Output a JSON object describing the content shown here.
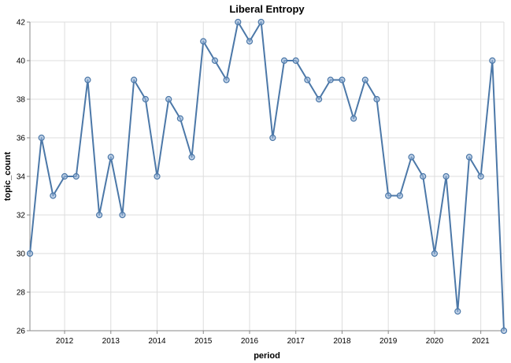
{
  "chart_data": {
    "type": "line",
    "title": "Liberal Entropy",
    "xlabel": "period",
    "ylabel": "topic_count",
    "x_tick_labels": [
      "2012",
      "2013",
      "2014",
      "2015",
      "2016",
      "2017",
      "2018",
      "2019",
      "2020",
      "2021"
    ],
    "ylim": [
      26,
      42
    ],
    "y_ticks": [
      26,
      28,
      30,
      32,
      34,
      36,
      38,
      40,
      42
    ],
    "grid": true,
    "colors": {
      "line": "#4c78a8",
      "point_fill": "#9ab5d8"
    },
    "series": [
      {
        "x": [
          "2011-04",
          "2011-07",
          "2011-10",
          "2012-01",
          "2012-04",
          "2012-07",
          "2012-10",
          "2013-01",
          "2013-04",
          "2013-07",
          "2013-10",
          "2014-01",
          "2014-04",
          "2014-07",
          "2014-10",
          "2015-01",
          "2015-04",
          "2015-07",
          "2015-10",
          "2016-01",
          "2016-04",
          "2016-07",
          "2016-10",
          "2017-01",
          "2017-04",
          "2017-07",
          "2017-10",
          "2018-01",
          "2018-04",
          "2018-07",
          "2018-10",
          "2019-01",
          "2019-04",
          "2019-07",
          "2019-10",
          "2020-01",
          "2020-04",
          "2020-07",
          "2020-10",
          "2021-01",
          "2021-04",
          "2021-07"
        ],
        "values": [
          30,
          36,
          33,
          34,
          34,
          39,
          32,
          35,
          32,
          39,
          38,
          34,
          38,
          37,
          35,
          41,
          40,
          39,
          42,
          41,
          42,
          36,
          40,
          40,
          39,
          38,
          39,
          39,
          37,
          39,
          38,
          33,
          33,
          35,
          34,
          30,
          34,
          27,
          35,
          34,
          40,
          26
        ]
      }
    ]
  }
}
